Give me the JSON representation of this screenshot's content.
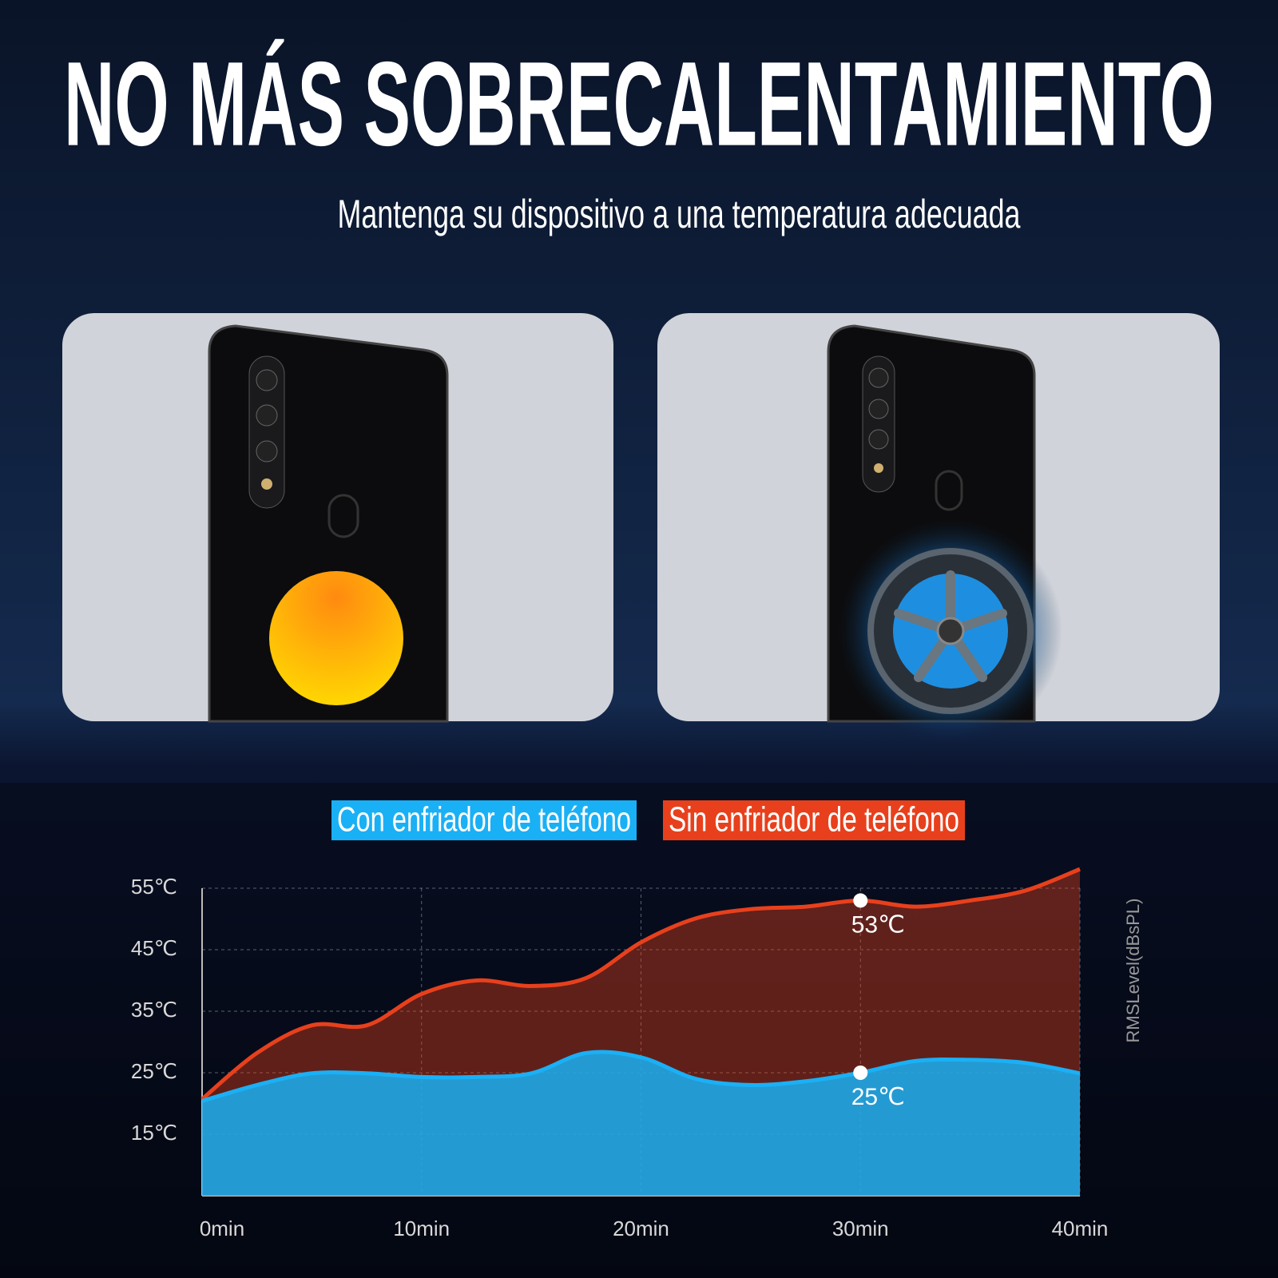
{
  "header": {
    "title": "NO MÁS SOBRECALENTAMIENTO",
    "subtitle": "Mantenga su dispositivo a una temperatura adecuada"
  },
  "chart_data": {
    "type": "area",
    "x": [
      0,
      2.5,
      5,
      7.5,
      10,
      12.5,
      15,
      17.5,
      20,
      22.5,
      25,
      27.5,
      30,
      32.5,
      35,
      37.5,
      40
    ],
    "series": [
      {
        "name": "Con enfriador de teléfono",
        "color": "#1ab0f5",
        "values": [
          20.4,
          23,
          24.9,
          24.9,
          24.3,
          24.3,
          24.9,
          28.2,
          27.5,
          24,
          23,
          23.6,
          25,
          26.9,
          27.1,
          26.6,
          24.9
        ],
        "value_labels": [
          null,
          null,
          null,
          null,
          null,
          null,
          null,
          null,
          null,
          null,
          null,
          null,
          "25℃",
          null,
          null,
          null,
          null
        ]
      },
      {
        "name": "Sin enfriador de teléfono",
        "color": "#e8401c",
        "values": [
          20.7,
          28.2,
          32.7,
          32.7,
          37.8,
          40,
          39.1,
          40.4,
          46.2,
          50.1,
          51.6,
          52,
          53,
          52,
          53,
          54.6,
          58.1
        ],
        "value_labels": [
          null,
          null,
          null,
          null,
          null,
          null,
          null,
          null,
          null,
          null,
          null,
          null,
          "53℃",
          null,
          null,
          null,
          null
        ]
      }
    ],
    "xlim": [
      0,
      40
    ],
    "xticks": [
      {
        "value": 0,
        "label": "0min"
      },
      {
        "value": 10,
        "label": "10min"
      },
      {
        "value": 20,
        "label": "20min"
      },
      {
        "value": 30,
        "label": "30min"
      },
      {
        "value": 40,
        "label": "40min"
      }
    ],
    "ylim": [
      5,
      55
    ],
    "yticks": [
      {
        "value": 15,
        "label": "15℃"
      },
      {
        "value": 25,
        "label": "25℃"
      },
      {
        "value": 35,
        "label": "35℃"
      },
      {
        "value": 45,
        "label": "45℃"
      },
      {
        "value": 55,
        "label": "55℃"
      }
    ],
    "y2_label": "RMSLevel(dBsPL)",
    "grid": true
  }
}
